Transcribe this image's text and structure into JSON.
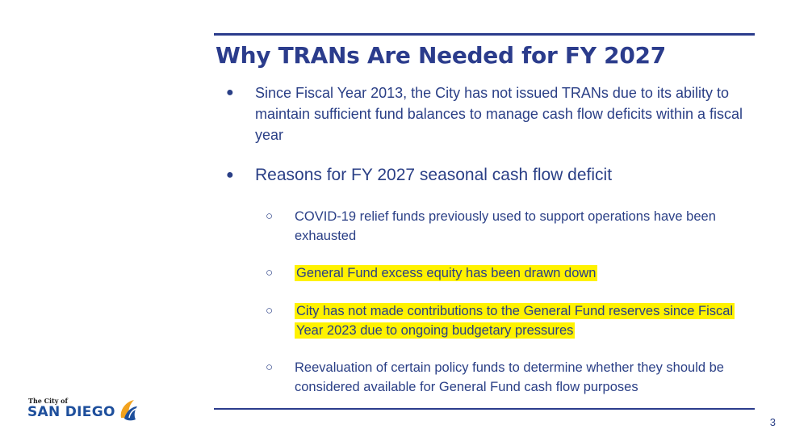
{
  "slide": {
    "title": "Why TRANs Are Needed for FY 2027",
    "bullets": [
      {
        "text": "Since Fiscal Year 2013, the City has not issued TRANs due to its ability to maintain sufficient fund balances to manage cash flow deficits within a fiscal year"
      },
      {
        "text": "Reasons for FY 2027 seasonal cash flow deficit",
        "subbullets": [
          {
            "text": "COVID-19 relief funds previously used to support operations have been exhausted",
            "highlighted": false
          },
          {
            "text": "General Fund excess equity has been drawn down",
            "highlighted": true
          },
          {
            "text": "City has not made contributions to the General Fund reserves since Fiscal Year 2023 due to ongoing budgetary pressures",
            "highlighted": true
          },
          {
            "text": "Reevaluation of certain policy funds to determine whether they should be considered available for General Fund cash flow purposes",
            "highlighted": false
          }
        ]
      }
    ],
    "bullet_glyph": "●",
    "sub_bullet_glyph": "○",
    "page_number": "3"
  },
  "logo": {
    "line1": "The City of",
    "line2": "SAN DIEGO",
    "icon": "sun-wave-icon"
  },
  "colors": {
    "accent": "#2b3c8c",
    "text": "#2a3f86",
    "highlight": "#fff200",
    "logo_blue": "#1e4f9c",
    "logo_orange": "#f2a21e"
  }
}
